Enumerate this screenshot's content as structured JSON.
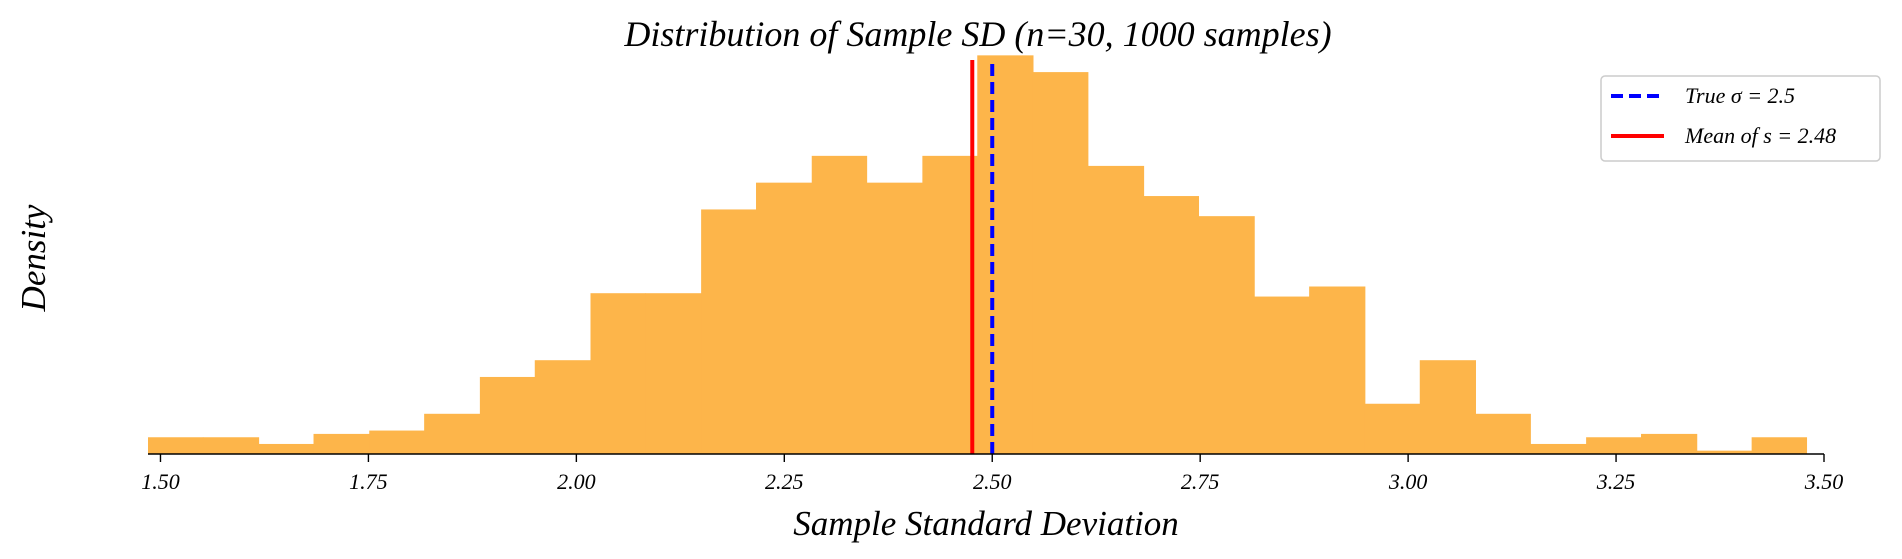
{
  "chart_data": {
    "type": "bar",
    "title": "Distribution of Sample SD (n=30, 1000 samples)",
    "xlabel": "Sample Standard Deviation",
    "ylabel": "Density",
    "xlim": [
      1.485,
      3.5
    ],
    "ylim": [
      0,
      1.8
    ],
    "x_ticks": [
      1.5,
      1.75,
      2.0,
      2.25,
      2.5,
      2.75,
      3.0,
      3.25,
      3.5
    ],
    "x_tick_labels": [
      "1.50",
      "1.75",
      "2.00",
      "2.25",
      "2.50",
      "2.75",
      "3.00",
      "3.25",
      "3.50"
    ],
    "bin_edges": [
      1.485,
      1.551,
      1.618,
      1.684,
      1.751,
      1.817,
      1.884,
      1.95,
      2.017,
      2.083,
      2.15,
      2.216,
      2.283,
      2.349,
      2.416,
      2.482,
      2.549,
      2.615,
      2.682,
      2.748,
      2.815,
      2.881,
      2.948,
      3.014,
      3.081,
      3.147,
      3.214,
      3.28,
      3.347,
      3.413,
      3.479
    ],
    "values": [
      0.075,
      0.075,
      0.045,
      0.09,
      0.105,
      0.18,
      0.345,
      0.42,
      0.72,
      0.72,
      1.095,
      1.215,
      1.335,
      1.215,
      1.335,
      1.785,
      1.71,
      1.29,
      1.155,
      1.065,
      0.705,
      0.75,
      0.225,
      0.42,
      0.18,
      0.045,
      0.075,
      0.09,
      0.015,
      0.075
    ],
    "bar_color": "#fdb54a",
    "grid": false,
    "reference_lines": [
      {
        "label": "True σ = 2.5",
        "x": 2.5,
        "color": "#0000ff",
        "style": "dashed"
      },
      {
        "label": "Mean of s = 2.48",
        "x": 2.476,
        "color": "#ff0000",
        "style": "solid"
      }
    ],
    "legend_position": "top-right"
  }
}
